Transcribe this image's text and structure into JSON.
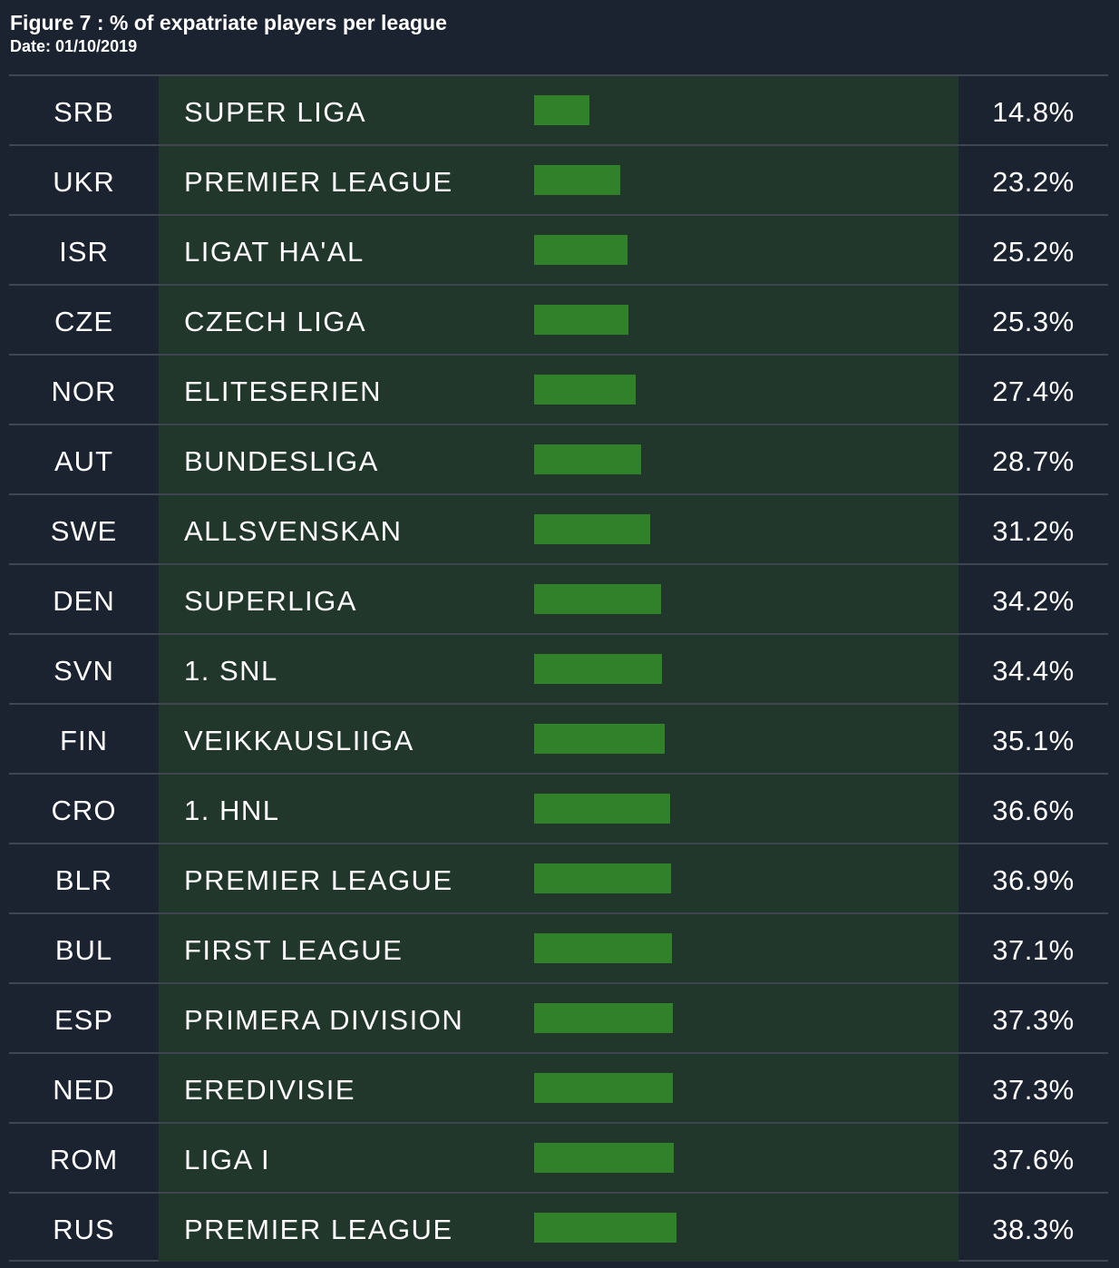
{
  "header": {
    "title": "Figure 7 : % of expatriate players per league",
    "date": "Date: 01/10/2019"
  },
  "colors": {
    "background": "#1b2230",
    "bar_column_background": "#22372b",
    "bar": "#31802a",
    "row_divider": "#3f4651",
    "text": "#ffffff"
  },
  "chart_data": {
    "type": "bar",
    "orientation": "horizontal",
    "title": "Figure 7 : % of expatriate players per league",
    "subtitle": "Date: 01/10/2019",
    "xlabel": "",
    "ylabel": "",
    "unit": "%",
    "grid": false,
    "categories": [
      "SRB",
      "UKR",
      "ISR",
      "CZE",
      "NOR",
      "AUT",
      "SWE",
      "DEN",
      "SVN",
      "FIN",
      "CRO",
      "BLR",
      "BUL",
      "ESP",
      "NED",
      "ROM",
      "RUS"
    ],
    "leagues": [
      "SUPER LIGA",
      "PREMIER LEAGUE",
      "LIGAT HA'AL",
      "CZECH LIGA",
      "ELITESERIEN",
      "BUNDESLIGA",
      "ALLSVENSKAN",
      "SUPERLIGA",
      "1. SNL",
      "VEIKKAUSLIIGA",
      "1. HNL",
      "PREMIER LEAGUE",
      "FIRST LEAGUE",
      "PRIMERA DIVISION",
      "EREDIVISIE",
      "LIGA I",
      "PREMIER LEAGUE"
    ],
    "values": [
      14.8,
      23.2,
      25.2,
      25.3,
      27.4,
      28.7,
      31.2,
      34.2,
      34.4,
      35.1,
      36.6,
      36.9,
      37.1,
      37.3,
      37.3,
      37.6,
      38.3
    ],
    "value_labels": [
      "14.8%",
      "23.2%",
      "25.2%",
      "25.3%",
      "27.4%",
      "28.7%",
      "31.2%",
      "34.2%",
      "34.4%",
      "35.1%",
      "36.6%",
      "36.9%",
      "37.1%",
      "37.3%",
      "37.3%",
      "37.6%",
      "38.3%"
    ]
  }
}
